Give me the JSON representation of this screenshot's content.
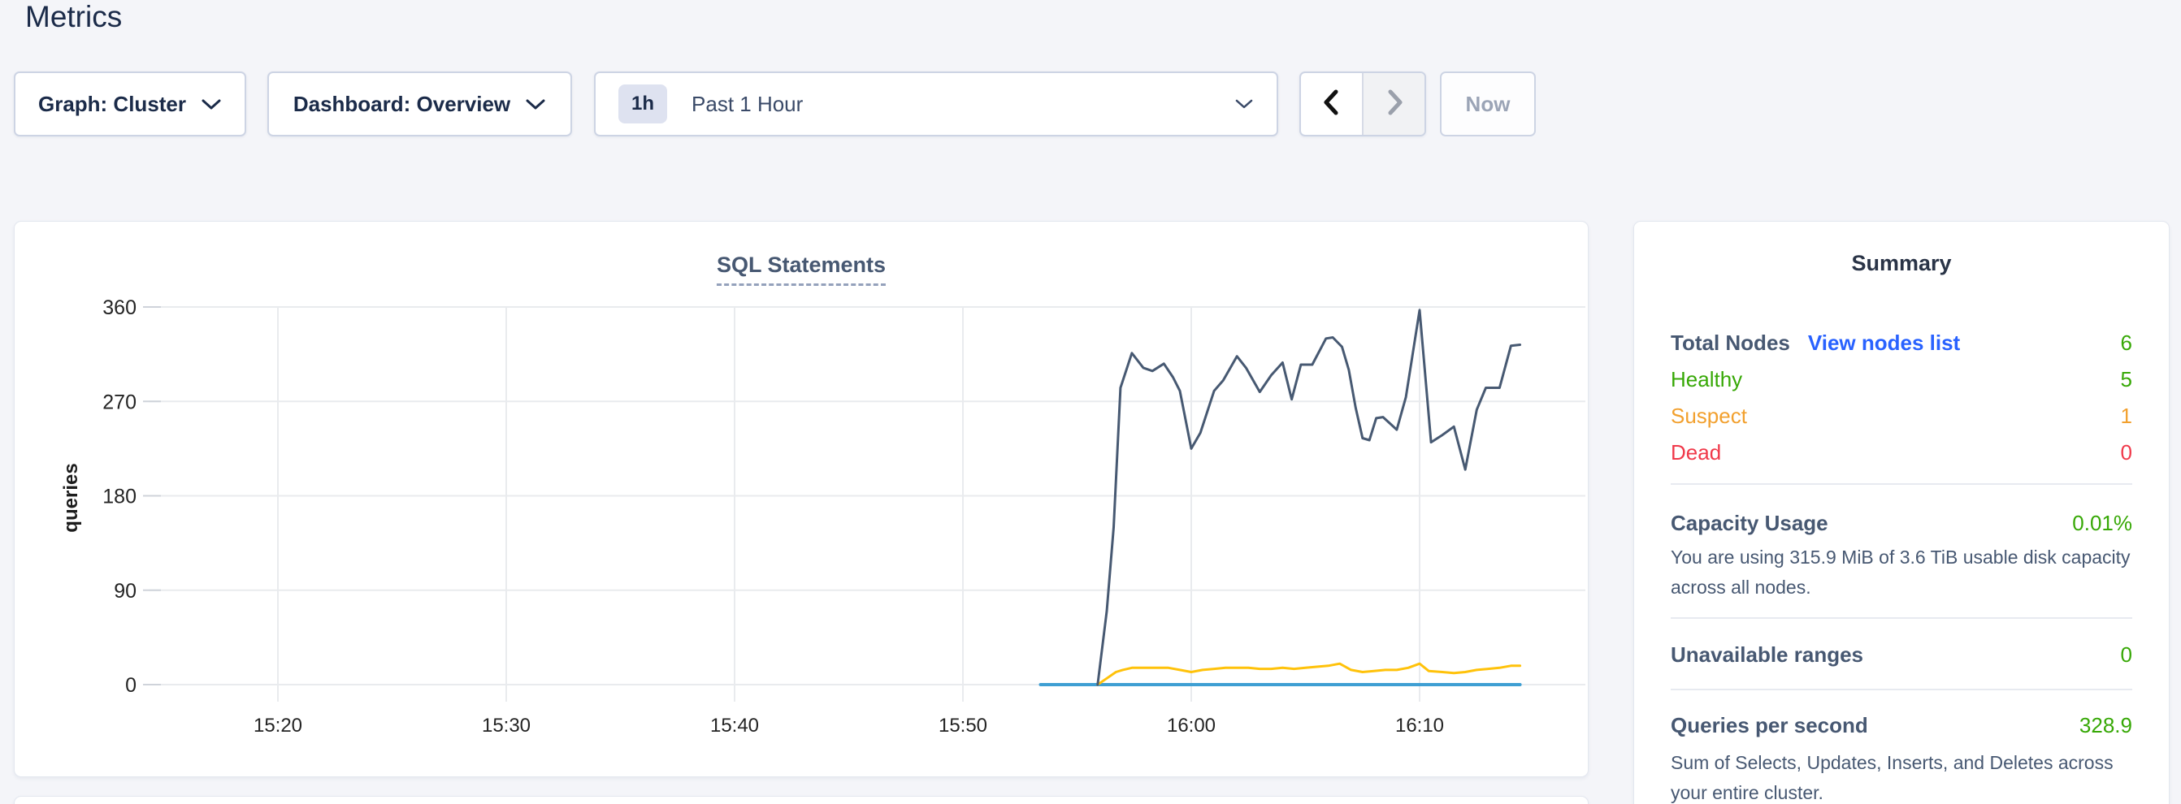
{
  "page": {
    "title": "Metrics"
  },
  "toolbar": {
    "graph_dropdown_label": "Graph: Cluster",
    "dashboard_dropdown_label": "Dashboard: Overview",
    "time_range": {
      "badge": "1h",
      "label": "Past 1 Hour"
    },
    "now_button_label": "Now"
  },
  "colors": {
    "accent_link_blue": "#2962ff",
    "healthy_green": "#37a806",
    "suspect_orange": "#f2a02e",
    "dead_red": "#f0394a",
    "line_navy": "#475972",
    "line_yellow": "#ffc20a",
    "line_blue": "#3f9fd3"
  },
  "chart_data": {
    "type": "line",
    "title": "SQL Statements",
    "ylabel": "queries",
    "ylim": [
      0,
      360
    ],
    "yticks": [
      0,
      90,
      180,
      270,
      360
    ],
    "grid": true,
    "legend": "none",
    "x_axis_note": "minutes since midnight; ticks every 10 min",
    "xticks": [
      {
        "minute": 920,
        "label": "15:20"
      },
      {
        "minute": 930,
        "label": "15:30"
      },
      {
        "minute": 940,
        "label": "15:40"
      },
      {
        "minute": 950,
        "label": "15:50"
      },
      {
        "minute": 960,
        "label": "16:00"
      },
      {
        "minute": 970,
        "label": "16:10"
      }
    ],
    "series": [
      {
        "name": "blue-flat-zero",
        "color": "#3f9fd3",
        "width": 4,
        "points": [
          [
            953.4,
            0
          ],
          [
            974.4,
            0
          ]
        ]
      },
      {
        "name": "yellow-low-rate",
        "color": "#ffc20a",
        "width": 3,
        "points": [
          [
            955.9,
            0
          ],
          [
            956.3,
            6
          ],
          [
            956.7,
            12
          ],
          [
            957.0,
            14
          ],
          [
            957.4,
            16
          ],
          [
            958.0,
            16
          ],
          [
            958.5,
            16
          ],
          [
            959.0,
            16
          ],
          [
            959.5,
            14
          ],
          [
            960.0,
            12
          ],
          [
            960.5,
            14
          ],
          [
            961.0,
            15
          ],
          [
            961.5,
            16
          ],
          [
            962.0,
            16
          ],
          [
            962.5,
            16
          ],
          [
            963.0,
            15
          ],
          [
            963.5,
            15
          ],
          [
            964.0,
            16
          ],
          [
            964.5,
            15
          ],
          [
            965.0,
            16
          ],
          [
            965.5,
            17
          ],
          [
            966.0,
            18
          ],
          [
            966.5,
            20
          ],
          [
            967.0,
            14
          ],
          [
            967.5,
            12
          ],
          [
            968.0,
            13
          ],
          [
            968.5,
            14
          ],
          [
            969.0,
            14
          ],
          [
            969.5,
            16
          ],
          [
            970.0,
            20
          ],
          [
            970.4,
            13
          ],
          [
            971.0,
            12
          ],
          [
            971.5,
            11
          ],
          [
            972.0,
            12
          ],
          [
            972.5,
            14
          ],
          [
            973.0,
            15
          ],
          [
            973.5,
            16
          ],
          [
            974.0,
            18
          ],
          [
            974.4,
            18
          ]
        ]
      },
      {
        "name": "navy-high-rate",
        "color": "#475972",
        "width": 3,
        "points": [
          [
            955.9,
            0
          ],
          [
            956.3,
            70
          ],
          [
            956.6,
            150
          ],
          [
            956.9,
            283
          ],
          [
            957.4,
            316
          ],
          [
            957.9,
            302
          ],
          [
            958.3,
            299
          ],
          [
            958.8,
            306
          ],
          [
            959.2,
            293
          ],
          [
            959.5,
            280
          ],
          [
            960.0,
            225
          ],
          [
            960.4,
            240
          ],
          [
            961.0,
            280
          ],
          [
            961.4,
            290
          ],
          [
            962.0,
            313
          ],
          [
            962.4,
            302
          ],
          [
            963.0,
            279
          ],
          [
            963.5,
            295
          ],
          [
            964.0,
            307
          ],
          [
            964.4,
            272
          ],
          [
            964.8,
            305
          ],
          [
            965.3,
            305
          ],
          [
            965.9,
            330
          ],
          [
            966.2,
            331
          ],
          [
            966.6,
            322
          ],
          [
            966.9,
            300
          ],
          [
            967.2,
            264
          ],
          [
            967.5,
            235
          ],
          [
            967.8,
            233
          ],
          [
            968.1,
            254
          ],
          [
            968.4,
            255
          ],
          [
            968.7,
            249
          ],
          [
            969.0,
            243
          ],
          [
            969.4,
            274
          ],
          [
            970.0,
            357
          ],
          [
            970.5,
            231
          ],
          [
            971.0,
            238
          ],
          [
            971.5,
            246
          ],
          [
            972.0,
            205
          ],
          [
            972.5,
            262
          ],
          [
            972.9,
            283
          ],
          [
            973.5,
            283
          ],
          [
            974.0,
            323
          ],
          [
            974.4,
            324
          ]
        ]
      }
    ]
  },
  "summary": {
    "title": "Summary",
    "total_nodes": {
      "label": "Total Nodes",
      "link": "View nodes list",
      "value": "6"
    },
    "node_rows": [
      {
        "label": "Healthy",
        "value": "5",
        "color": "#37a806"
      },
      {
        "label": "Suspect",
        "value": "1",
        "color": "#f2a02e"
      },
      {
        "label": "Dead",
        "value": "0",
        "color": "#f0394a"
      }
    ],
    "sections": [
      {
        "label": "Capacity Usage",
        "value": "0.01%",
        "description": "You are using 315.9 MiB of 3.6 TiB usable disk capacity across all nodes."
      },
      {
        "label": "Unavailable ranges",
        "value": "0",
        "description": ""
      },
      {
        "label": "Queries per second",
        "value": "328.9",
        "description": "Sum of Selects, Updates, Inserts, and Deletes across your entire cluster."
      }
    ]
  }
}
